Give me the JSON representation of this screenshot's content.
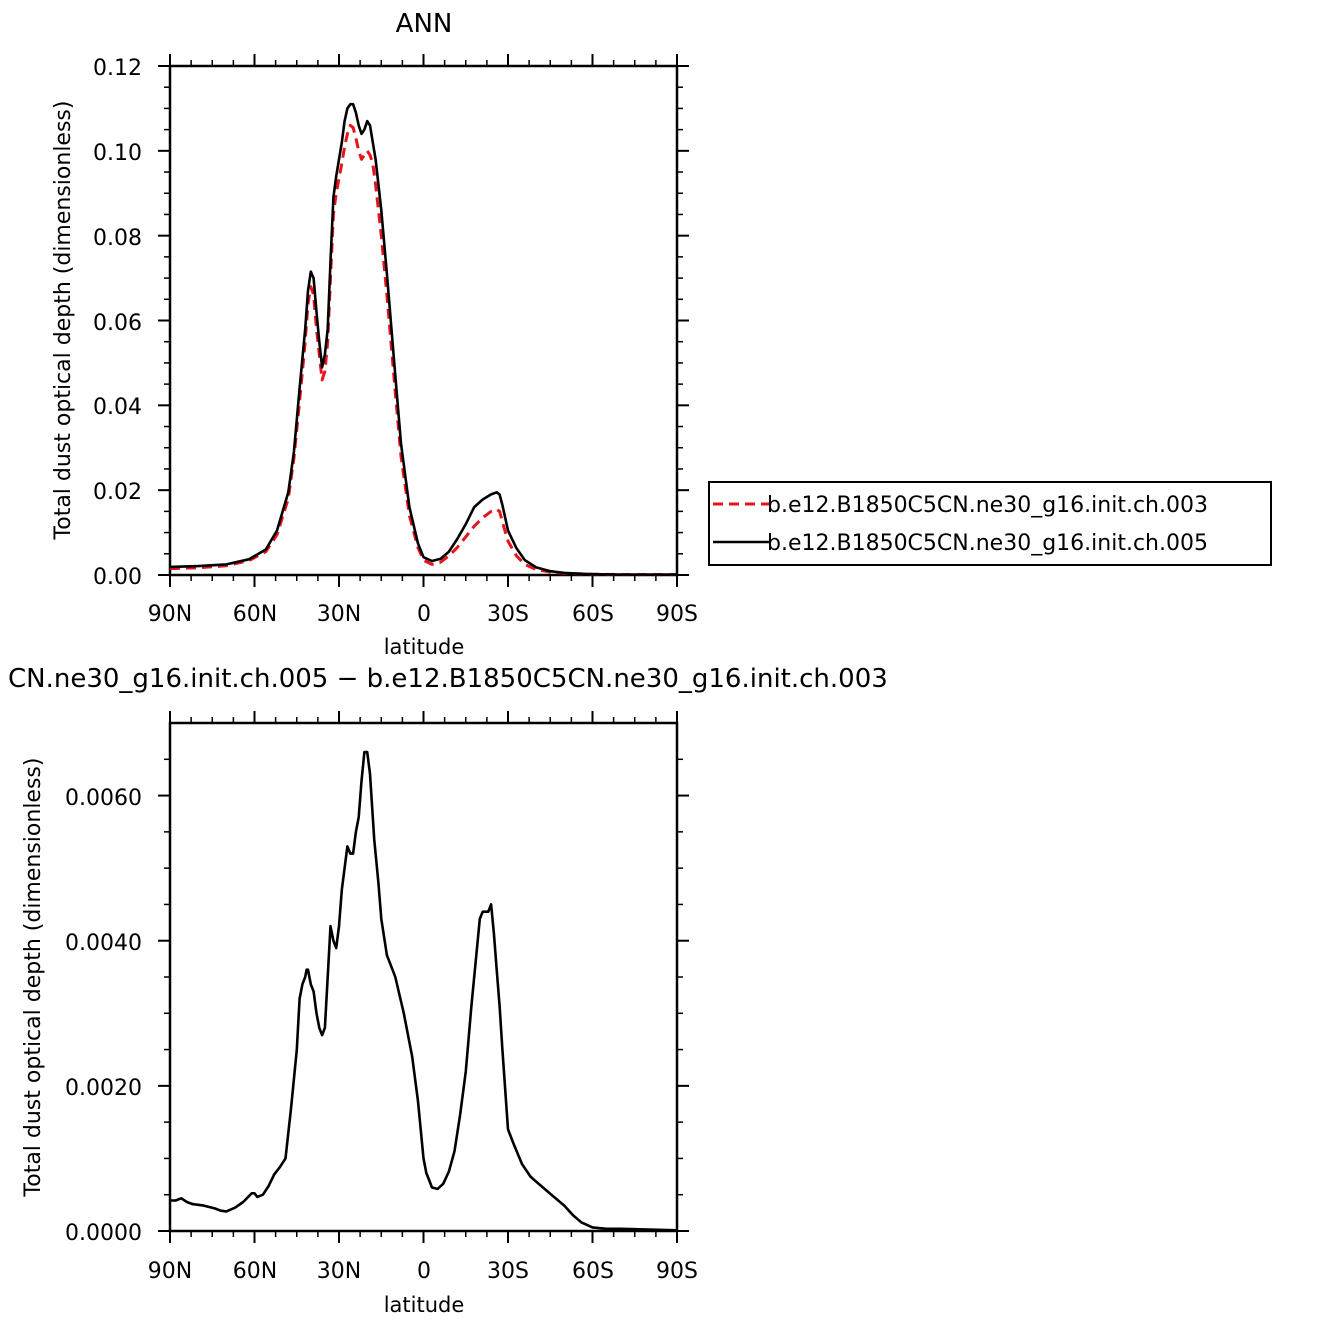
{
  "chart_data": [
    {
      "type": "line",
      "title": "ANN",
      "xlabel": "latitude",
      "ylabel": "Total dust optical depth (dimensionless)",
      "xlim": [
        90,
        -90
      ],
      "ylim": [
        0,
        0.12
      ],
      "x_ticks": [
        90,
        60,
        30,
        0,
        -30,
        -60,
        -90
      ],
      "x_tick_labels": [
        "90N",
        "60N",
        "30N",
        "0",
        "30S",
        "60S",
        "90S"
      ],
      "y_ticks": [
        0,
        0.02,
        0.04,
        0.06,
        0.08,
        0.1,
        0.12
      ],
      "y_tick_labels": [
        "0.00",
        "0.02",
        "0.04",
        "0.06",
        "0.08",
        "0.10",
        "0.12"
      ],
      "grid": false,
      "legend_position": "right",
      "series": [
        {
          "name": "b.e12.B1850C5CN.ne30_g16.init.ch.003",
          "color": "#e8141c",
          "dash": "dashed",
          "x": [
            90,
            80,
            70,
            62,
            56,
            52,
            48,
            46,
            44,
            42,
            41,
            40,
            39,
            38,
            37,
            36,
            35,
            34,
            33,
            32,
            31,
            29,
            28,
            27,
            26,
            25,
            24,
            23,
            22,
            21,
            20,
            19,
            18,
            17,
            15,
            13,
            10,
            8,
            5,
            2,
            0,
            -3,
            -6,
            -9,
            -12,
            -15,
            -18,
            -21,
            -24,
            -26,
            -27,
            -28,
            -30,
            -33,
            -36,
            -40,
            -45,
            -50,
            -55,
            -60,
            -70,
            -80,
            -90
          ],
          "y": [
            0.0015,
            0.0017,
            0.0022,
            0.0034,
            0.0055,
            0.0095,
            0.018,
            0.0275,
            0.041,
            0.055,
            0.064,
            0.068,
            0.066,
            0.058,
            0.052,
            0.046,
            0.048,
            0.055,
            0.07,
            0.085,
            0.09,
            0.097,
            0.101,
            0.104,
            0.106,
            0.1055,
            0.103,
            0.1,
            0.098,
            0.099,
            0.1,
            0.099,
            0.097,
            0.092,
            0.08,
            0.066,
            0.043,
            0.028,
            0.014,
            0.0065,
            0.0035,
            0.0025,
            0.003,
            0.0045,
            0.0065,
            0.009,
            0.0115,
            0.0135,
            0.015,
            0.0155,
            0.015,
            0.0125,
            0.008,
            0.0045,
            0.0025,
            0.0013,
            0.0007,
            0.0004,
            0.0003,
            0.0002,
            0.0001,
            0.0001,
            0.0001
          ]
        },
        {
          "name": "b.e12.B1850C5CN.ne30_g16.init.ch.005",
          "color": "#000000",
          "dash": "solid",
          "x": [
            90,
            80,
            70,
            62,
            56,
            52,
            48,
            46,
            44,
            42,
            41,
            40,
            39,
            38,
            37,
            36,
            35,
            34,
            33,
            32,
            31,
            29,
            28,
            27,
            26,
            25,
            24,
            23,
            22,
            21,
            20,
            19,
            18,
            17,
            15,
            13,
            10,
            8,
            5,
            2,
            0,
            -3,
            -6,
            -9,
            -12,
            -15,
            -18,
            -21,
            -24,
            -26,
            -27,
            -28,
            -30,
            -33,
            -36,
            -40,
            -45,
            -50,
            -55,
            -60,
            -70,
            -80,
            -90
          ],
          "y": [
            0.0019,
            0.0021,
            0.0025,
            0.0037,
            0.006,
            0.0105,
            0.0195,
            0.029,
            0.044,
            0.058,
            0.067,
            0.0715,
            0.07,
            0.062,
            0.055,
            0.049,
            0.052,
            0.058,
            0.074,
            0.089,
            0.094,
            0.102,
            0.107,
            0.11,
            0.111,
            0.111,
            0.109,
            0.106,
            0.104,
            0.105,
            0.107,
            0.106,
            0.102,
            0.098,
            0.086,
            0.071,
            0.047,
            0.031,
            0.016,
            0.0075,
            0.0042,
            0.0033,
            0.0038,
            0.0055,
            0.0085,
            0.012,
            0.016,
            0.0178,
            0.019,
            0.0195,
            0.019,
            0.0165,
            0.0105,
            0.0063,
            0.0035,
            0.0018,
            0.0009,
            0.0005,
            0.0003,
            0.0002,
            0.0001,
            0.0001,
            0.0001
          ]
        }
      ]
    },
    {
      "type": "line",
      "title": "CN.ne30_g16.init.ch.005 − b.e12.B1850C5CN.ne30_g16.init.ch.003",
      "xlabel": "latitude",
      "ylabel": "Total dust optical depth (dimensionless)",
      "xlim": [
        90,
        -90
      ],
      "ylim": [
        0,
        0.007
      ],
      "x_ticks": [
        90,
        60,
        30,
        0,
        -30,
        -60,
        -90
      ],
      "x_tick_labels": [
        "90N",
        "60N",
        "30N",
        "0",
        "30S",
        "60S",
        "90S"
      ],
      "y_ticks": [
        0,
        0.002,
        0.004,
        0.006
      ],
      "y_tick_labels": [
        "0.0000",
        "0.0020",
        "0.0040",
        "0.0060"
      ],
      "grid": false,
      "series": [
        {
          "color": "#000000",
          "dash": "solid",
          "x": [
            90,
            88,
            86,
            84,
            82,
            78,
            74,
            72,
            70,
            67,
            64,
            61,
            60,
            59,
            57,
            55,
            53,
            51,
            49,
            47,
            45,
            44,
            43,
            42,
            41.5,
            41,
            40,
            39,
            38,
            37,
            36,
            35,
            34,
            33,
            32,
            31,
            30,
            29,
            28,
            27,
            26,
            25,
            24,
            23,
            22,
            21,
            20,
            19,
            18,
            17.5,
            17,
            16,
            15,
            13,
            11,
            10,
            7,
            4,
            2,
            1,
            0,
            -1,
            -3,
            -5,
            -7,
            -9,
            -11,
            -13,
            -15,
            -17,
            -19,
            -20,
            -21,
            -22,
            -23,
            -24,
            -25,
            -26,
            -27,
            -28,
            -30,
            -32,
            -35,
            -38,
            -40,
            -43,
            -46,
            -50,
            -53,
            -56,
            -60,
            -65,
            -70,
            -80,
            -90
          ],
          "y": [
            0.00042,
            0.00042,
            0.00045,
            0.0004,
            0.00037,
            0.00035,
            0.00031,
            0.00028,
            0.00027,
            0.00032,
            0.0004,
            0.00052,
            0.00052,
            0.00047,
            0.0005,
            0.00062,
            0.00078,
            0.00088,
            0.001,
            0.0017,
            0.0025,
            0.0032,
            0.0034,
            0.0035,
            0.0036,
            0.0036,
            0.0034,
            0.0033,
            0.003,
            0.0028,
            0.0027,
            0.0028,
            0.0035,
            0.0042,
            0.004,
            0.0039,
            0.0042,
            0.0047,
            0.005,
            0.0053,
            0.0052,
            0.0052,
            0.0055,
            0.0057,
            0.0062,
            0.0066,
            0.0066,
            0.0063,
            0.0057,
            0.0054,
            0.0052,
            0.0048,
            0.0043,
            0.0038,
            0.0036,
            0.0035,
            0.003,
            0.0024,
            0.0018,
            0.0014,
            0.001,
            0.0008,
            0.0006,
            0.00058,
            0.00065,
            0.00082,
            0.0011,
            0.0016,
            0.0022,
            0.0031,
            0.0039,
            0.0043,
            0.0044,
            0.0044,
            0.0044,
            0.0045,
            0.0041,
            0.0036,
            0.0031,
            0.0025,
            0.0014,
            0.0012,
            0.00092,
            0.00075,
            0.00068,
            0.00058,
            0.00048,
            0.00035,
            0.00022,
            0.00012,
            5e-05,
            3e-05,
            3e-05,
            2e-05,
            1e-05
          ]
        }
      ]
    }
  ]
}
